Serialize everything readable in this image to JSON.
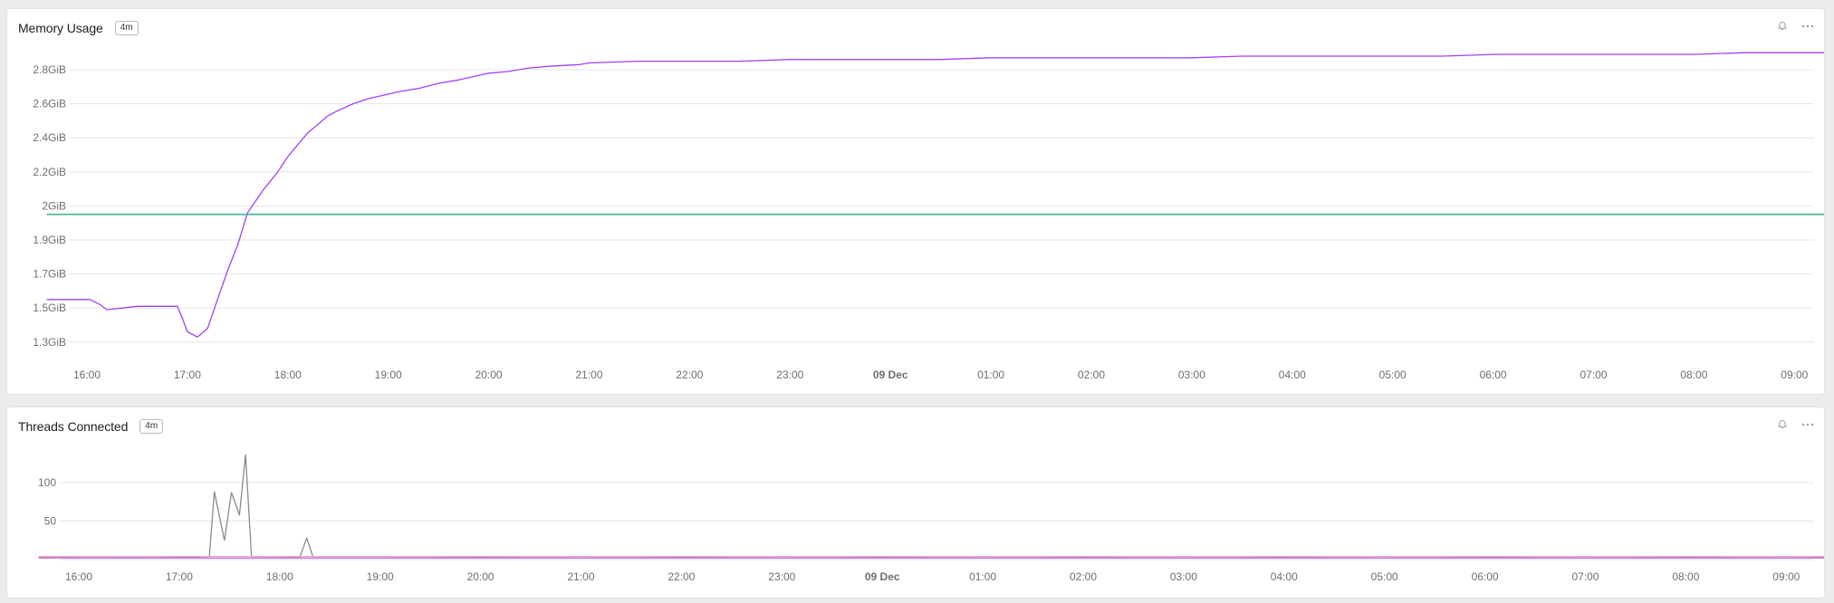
{
  "panels": [
    {
      "title": "Memory Usage",
      "badge": "4m",
      "icons": [
        "bell-icon",
        "more-icon"
      ],
      "chart_data": {
        "type": "line",
        "y_ticks": [
          "1.3GiB",
          "1.5GiB",
          "1.7GiB",
          "1.9GiB",
          "2GiB",
          "2.2GiB",
          "2.4GiB",
          "2.6GiB",
          "2.8GiB"
        ],
        "x_ticks": [
          "16:00",
          "17:00",
          "18:00",
          "19:00",
          "20:00",
          "21:00",
          "22:00",
          "23:00",
          "09 Dec",
          "01:00",
          "02:00",
          "03:00",
          "04:00",
          "05:00",
          "06:00",
          "07:00",
          "08:00",
          "09:00"
        ],
        "x_bold_tick": "09 Dec",
        "grid": true,
        "series": [
          {
            "color": "#a142f4",
            "x": [
              15.6,
              16.03,
              16.13,
              16.2,
              16.35,
              16.5,
              16.9,
              16.95,
              17.0,
              17.1,
              17.2,
              17.3,
              17.4,
              17.5,
              17.6,
              17.75,
              17.9,
              18.0,
              18.1,
              18.2,
              18.3,
              18.4,
              18.5,
              18.65,
              18.8,
              18.95,
              19.1,
              19.3,
              19.5,
              19.7,
              19.85,
              20.0,
              20.2,
              20.4,
              20.6,
              20.9,
              21.0,
              21.5,
              22.0,
              22.5,
              23.0,
              23.5,
              24.0,
              24.5,
              25.0,
              25.5,
              26.0,
              26.5,
              27.0,
              27.5,
              28.0,
              28.5,
              29.0,
              29.5,
              30.0,
              30.5,
              31.0,
              31.5,
              32.0,
              32.5,
              33.0,
              33.5
            ],
            "y": [
              1.55,
              1.55,
              1.52,
              1.49,
              1.5,
              1.51,
              1.51,
              1.44,
              1.36,
              1.33,
              1.38,
              1.55,
              1.72,
              1.87,
              1.98,
              2.09,
              2.2,
              2.29,
              2.36,
              2.43,
              2.48,
              2.53,
              2.56,
              2.6,
              2.63,
              2.65,
              2.67,
              2.69,
              2.72,
              2.74,
              2.76,
              2.78,
              2.79,
              2.81,
              2.82,
              2.83,
              2.84,
              2.85,
              2.85,
              2.85,
              2.86,
              2.86,
              2.86,
              2.86,
              2.87,
              2.87,
              2.87,
              2.87,
              2.87,
              2.88,
              2.88,
              2.88,
              2.88,
              2.88,
              2.89,
              2.89,
              2.89,
              2.89,
              2.89,
              2.9,
              2.9,
              2.9
            ]
          },
          {
            "color": "#2aa88a",
            "x": [
              15.6,
              33.5
            ],
            "y": [
              1.975,
              1.975
            ]
          }
        ]
      }
    },
    {
      "title": "Threads Connected",
      "badge": "4m",
      "icons": [
        "bell-icon",
        "more-icon"
      ],
      "chart_data": {
        "type": "line",
        "y_ticks": [
          "50",
          "100"
        ],
        "x_ticks": [
          "16:00",
          "17:00",
          "18:00",
          "19:00",
          "20:00",
          "21:00",
          "22:00",
          "23:00",
          "09 Dec",
          "01:00",
          "02:00",
          "03:00",
          "04:00",
          "05:00",
          "06:00",
          "07:00",
          "08:00",
          "09:00"
        ],
        "x_bold_tick": "09 Dec",
        "grid": true,
        "ylim": [
          0,
          135
        ],
        "series": [
          {
            "color": "#8a8a8a",
            "x": [
              15.6,
              16.5,
              17.0,
              17.2,
              17.3,
              17.35,
              17.45,
              17.52,
              17.6,
              17.66,
              17.72,
              17.8,
              18.2,
              18.27,
              18.33,
              19.0,
              20.0,
              21.0,
              22.0,
              23.0,
              24.0,
              25.0,
              26.0,
              27.0,
              28.0,
              29.0,
              30.0,
              31.0,
              32.0,
              33.0,
              33.5
            ],
            "y": [
              3,
              4,
              3,
              3,
              4,
              88,
              25,
              87,
              58,
              136,
              4,
              4,
              3,
              28,
              4,
              4,
              3,
              4,
              3,
              4,
              3,
              4,
              3,
              4,
              3,
              4,
              3,
              4,
              3,
              4,
              3
            ]
          },
          {
            "color": "#c97ad8",
            "x": [
              15.6,
              17.0,
              18.0,
              19.0,
              20.0,
              21.0,
              22.0,
              23.0,
              24.0,
              25.0,
              26.0,
              27.0,
              28.0,
              29.0,
              30.0,
              31.0,
              32.0,
              33.0,
              33.5
            ],
            "y": [
              2,
              2,
              2,
              2,
              2,
              2,
              2,
              2,
              2,
              2,
              2,
              2,
              2,
              2,
              2,
              2,
              2,
              2,
              2
            ]
          },
          {
            "color": "#f2a5c8",
            "x": [
              15.6,
              17.0,
              18.0,
              19.0,
              20.0,
              21.0,
              22.0,
              23.0,
              24.0,
              25.0,
              26.0,
              27.0,
              28.0,
              29.0,
              30.0,
              31.0,
              32.0,
              33.0,
              33.5
            ],
            "y": [
              4,
              4,
              4,
              4,
              4,
              4,
              4,
              4,
              4,
              4,
              4,
              4,
              4,
              4,
              4,
              4,
              4,
              4,
              4
            ]
          }
        ]
      }
    }
  ]
}
